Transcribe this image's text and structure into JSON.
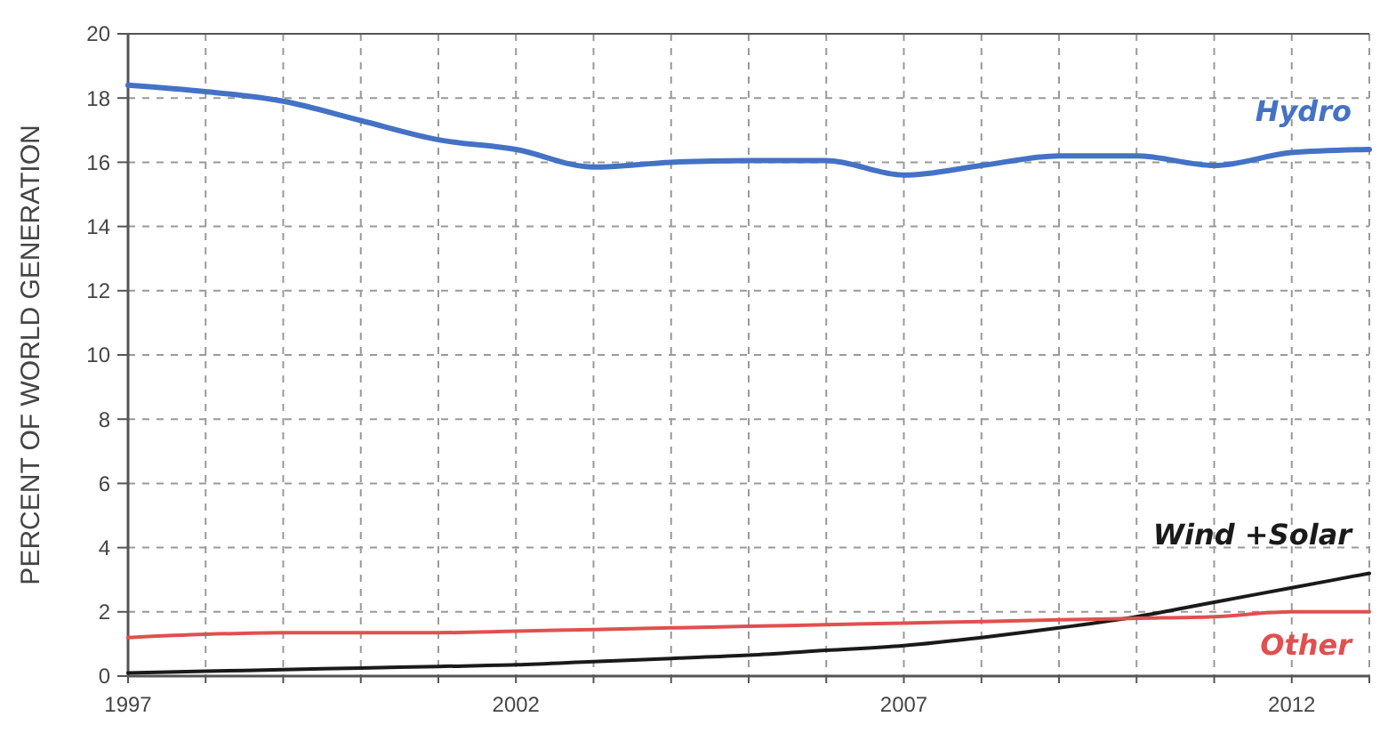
{
  "chart_data": {
    "type": "line",
    "ylabel": "PERCENT OF WORLD GENERATION",
    "x": [
      1997,
      1998,
      1999,
      2000,
      2001,
      2002,
      2003,
      2004,
      2005,
      2006,
      2007,
      2008,
      2009,
      2010,
      2011,
      2012,
      2013
    ],
    "series": [
      {
        "name": "Hydro",
        "color": "#4472c4",
        "values": [
          18.4,
          18.2,
          17.9,
          17.3,
          16.7,
          16.4,
          15.85,
          16.0,
          16.05,
          16.05,
          15.6,
          15.9,
          16.2,
          16.2,
          15.9,
          16.3,
          16.4
        ]
      },
      {
        "name": "Wind +Solar",
        "color": "#1a1a1a",
        "values": [
          0.1,
          0.15,
          0.2,
          0.25,
          0.3,
          0.35,
          0.45,
          0.55,
          0.65,
          0.8,
          0.95,
          1.2,
          1.5,
          1.85,
          2.3,
          2.75,
          3.2
        ]
      },
      {
        "name": "Other",
        "color": "#e05050",
        "values": [
          1.2,
          1.3,
          1.35,
          1.35,
          1.35,
          1.4,
          1.45,
          1.5,
          1.55,
          1.6,
          1.65,
          1.7,
          1.75,
          1.8,
          1.85,
          2.0,
          2.0
        ]
      }
    ],
    "xlim": [
      1997,
      2013
    ],
    "xticks": [
      1997,
      {
        "value": 1998,
        "label": null
      },
      {
        "value": 1999,
        "label": null
      },
      {
        "value": 2000,
        "label": null
      },
      {
        "value": 2001,
        "label": null
      },
      2002,
      {
        "value": 2003,
        "label": null
      },
      {
        "value": 2004,
        "label": null
      },
      {
        "value": 2005,
        "label": null
      },
      {
        "value": 2006,
        "label": null
      },
      2007,
      {
        "value": 2008,
        "label": null
      },
      {
        "value": 2009,
        "label": null
      },
      {
        "value": 2010,
        "label": null
      },
      {
        "value": 2011,
        "label": null
      },
      2012,
      {
        "value": 2013,
        "label": null
      }
    ],
    "ylim": [
      0,
      20
    ],
    "yticks": [
      0,
      2,
      4,
      6,
      8,
      10,
      12,
      14,
      16,
      18,
      20
    ],
    "grid": true,
    "legend": false,
    "marker": "none",
    "line_style": "solid"
  }
}
